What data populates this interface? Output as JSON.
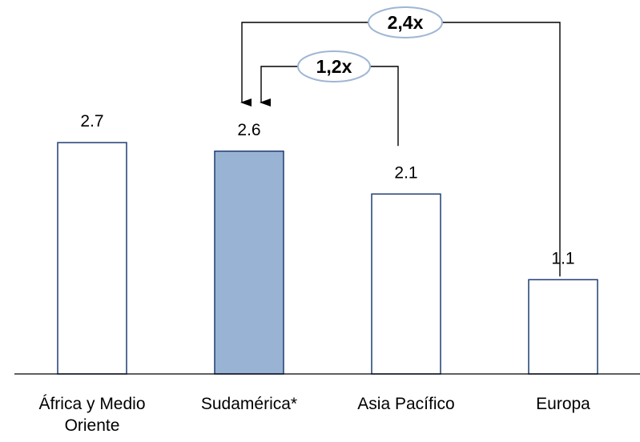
{
  "chart_data": {
    "type": "bar",
    "categories": [
      "África y Medio Oriente",
      "Sudamérica*",
      "Asia Pacífico",
      "Europa"
    ],
    "values": [
      2.7,
      2.6,
      2.1,
      1.1
    ],
    "value_labels": [
      "2.7",
      "2.6",
      "2.1",
      "1.1"
    ],
    "highlight_index": 1,
    "highlight_color": "#98b3d3",
    "bar_outline_color": "#1f3d73",
    "ylim": [
      0,
      3.3
    ],
    "grid": false,
    "legend": "none",
    "annotations": [
      {
        "text": "2,4x",
        "from_category": "Europa",
        "to_category": "Sudamérica*"
      },
      {
        "text": "1,2x",
        "from_category": "Asia Pacífico",
        "to_category": "Sudamérica*"
      }
    ],
    "bubble_border_color": "#9fb6d3"
  }
}
